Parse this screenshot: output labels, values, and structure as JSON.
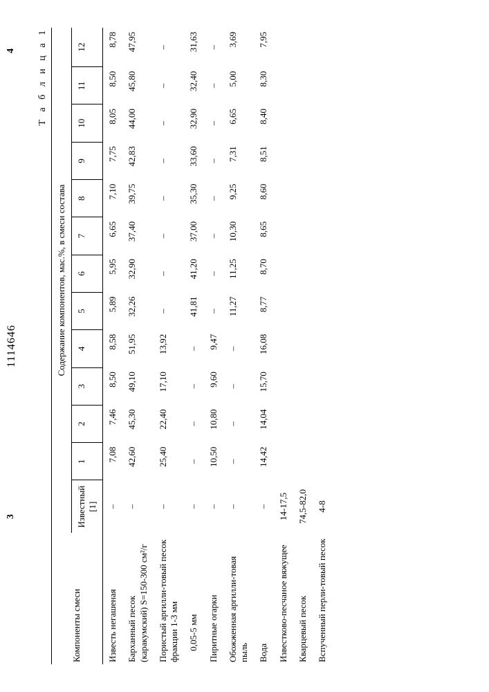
{
  "document": {
    "page_left_num": "3",
    "doc_number": "1114646",
    "page_right_num": "4",
    "table_label": "Т а б л и ц а  1"
  },
  "header": {
    "left": "Компоненты смеси",
    "span": "Содержание компонентов, мас.%, в смеси состава",
    "izv": "Известный [1]",
    "cols": [
      "1",
      "2",
      "3",
      "4",
      "5",
      "6",
      "7",
      "8",
      "9",
      "10",
      "11",
      "12"
    ]
  },
  "rows": [
    {
      "label": "Известь негашеная",
      "izv": "–",
      "v": [
        "7,08",
        "7,46",
        "8,50",
        "8,58",
        "5,89",
        "5,95",
        "6,65",
        "7,10",
        "7,75",
        "8,05",
        "8,50",
        "8,78"
      ]
    },
    {
      "label": "Барханный песок (каракумский) S=150-300 см²/г",
      "izv": "–",
      "v": [
        "42,60",
        "45,30",
        "49,10",
        "51,95",
        "32,26",
        "32,90",
        "37,40",
        "39,75",
        "42,83",
        "44,00",
        "45,80",
        "47,95"
      ]
    },
    {
      "label": "Пористый аргилли-товый песок фракции 1-3 мм",
      "izv": "–",
      "v": [
        "25,40",
        "22,40",
        "17,10",
        "13,92",
        "–",
        "–",
        "–",
        "–",
        "–",
        "–",
        "–",
        "–"
      ]
    },
    {
      "label": "     0,05-5 мм",
      "izv": "–",
      "v": [
        "–",
        "–",
        "–",
        "–",
        "41,81",
        "41,20",
        "37,00",
        "35,30",
        "33,60",
        "32,90",
        "32,40",
        "31,63"
      ]
    },
    {
      "label": "Пиритные огарки",
      "izv": "–",
      "v": [
        "10,50",
        "10,80",
        "9,60",
        "9,47",
        "–",
        "–",
        "–",
        "–",
        "–",
        "–",
        "–",
        "–"
      ]
    },
    {
      "label": "Обожженная аргилли-товая пыль",
      "izv": "–",
      "v": [
        "–",
        "–",
        "–",
        "–",
        "11,27",
        "11,25",
        "10,30",
        "9,25",
        "7,31",
        "6,65",
        "5,00",
        "3,69"
      ]
    },
    {
      "label": "Вода",
      "izv": "–",
      "v": [
        "14,42",
        "14,04",
        "15,70",
        "16,08",
        "8,77",
        "8,70",
        "8,65",
        "8,60",
        "8,51",
        "8,40",
        "8,30",
        "7,95"
      ]
    },
    {
      "label": "Известково-песчаное вяжущее",
      "izv": "14-17,5",
      "v": [
        "",
        "",
        "",
        "",
        "",
        "",
        "",
        "",
        "",
        "",
        "",
        ""
      ]
    },
    {
      "label": "Кварцевый песок",
      "izv": "74,5-82,0",
      "v": [
        "",
        "",
        "",
        "",
        "",
        "",
        "",
        "",
        "",
        "",
        "",
        ""
      ]
    },
    {
      "label": "Вспученный перли-товый песок",
      "izv": "4-8",
      "v": [
        "",
        "",
        "",
        "",
        "",
        "",
        "",
        "",
        "",
        "",
        "",
        ""
      ]
    }
  ]
}
